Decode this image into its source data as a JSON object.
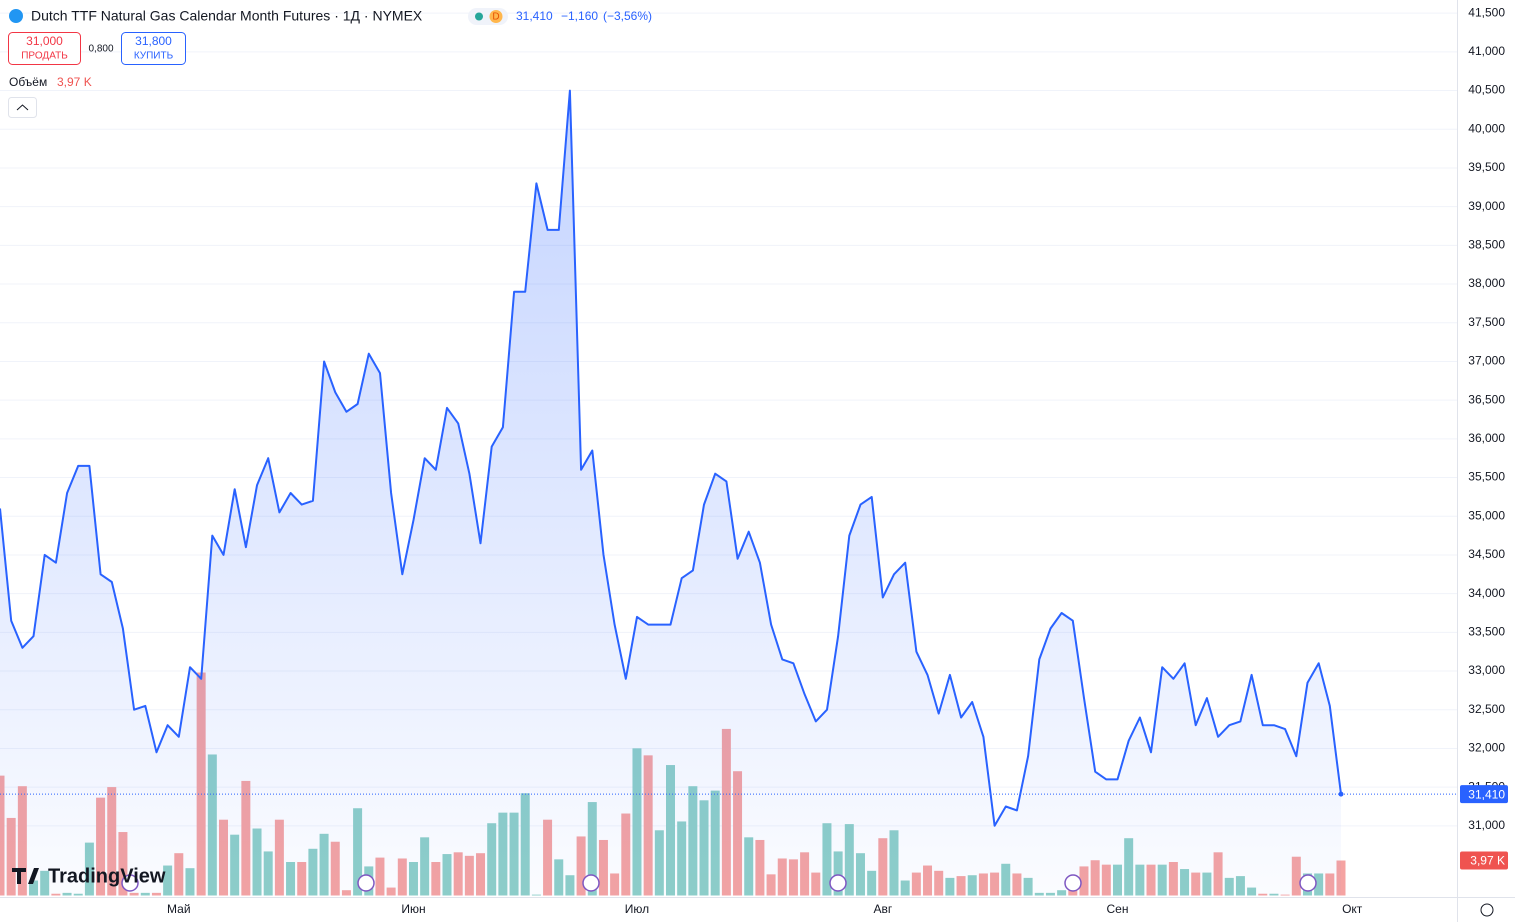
{
  "header": {
    "symbol_title": "Dutch TTF Natural Gas Calendar Month Futures · 1Д · NYMEX",
    "interval_badge": "D",
    "change": "−1,160",
    "change_pct": "(−3,56%)",
    "sell_price": "31,000",
    "sell_label": "ПРОДАТЬ",
    "spread": "0,800",
    "buy_price": "31,800",
    "buy_label": "КУПИТЬ",
    "volume_label": "Объём"
  },
  "logo": "TradingView",
  "chart_data": {
    "type": "line",
    "categories": [
      null,
      null,
      null,
      null,
      null,
      null,
      null,
      null,
      null,
      null,
      null,
      null,
      null,
      null,
      null,
      null,
      "Май",
      null,
      null,
      null,
      null,
      null,
      null,
      null,
      null,
      null,
      null,
      null,
      null,
      null,
      null,
      null,
      null,
      null,
      null,
      null,
      null,
      "Июн",
      null,
      null,
      null,
      null,
      null,
      null,
      null,
      null,
      null,
      null,
      null,
      null,
      null,
      null,
      null,
      null,
      null,
      null,
      null,
      "Июл",
      null,
      null,
      null,
      null,
      null,
      null,
      null,
      null,
      null,
      null,
      null,
      null,
      null,
      null,
      null,
      null,
      null,
      null,
      null,
      null,
      null,
      "Авг",
      null,
      null,
      null,
      null,
      null,
      null,
      null,
      null,
      null,
      null,
      null,
      null,
      null,
      null,
      null,
      null,
      null,
      null,
      null,
      null,
      "Сен",
      null,
      null,
      null,
      null,
      null,
      null,
      null,
      null,
      null,
      null,
      null,
      null,
      null,
      null,
      null,
      null,
      null,
      null,
      null,
      null,
      "Окт"
    ],
    "values": [
      35100,
      33650,
      33300,
      33450,
      34500,
      34400,
      35300,
      35650,
      35650,
      34250,
      34150,
      33550,
      32500,
      32550,
      31950,
      32300,
      32150,
      33050,
      32900,
      34750,
      34500,
      35350,
      34600,
      35400,
      35750,
      35050,
      35300,
      35150,
      35200,
      37000,
      36600,
      36350,
      36450,
      37100,
      36850,
      35300,
      34250,
      34950,
      35750,
      35600,
      36400,
      36200,
      35550,
      34650,
      35900,
      36150,
      37900,
      37900,
      39300,
      38700,
      38700,
      40500,
      35600,
      35850,
      34500,
      33600,
      32900,
      33700,
      33600,
      33600,
      33600,
      34200,
      34300,
      35150,
      35550,
      35450,
      34450,
      34800,
      34400,
      33600,
      33150,
      33100,
      32700,
      32350,
      32500,
      33450,
      34750,
      35150,
      35250,
      33950,
      34250,
      34400,
      33250,
      32950,
      32450,
      32950,
      32400,
      32600,
      32150,
      31000,
      31250,
      31200,
      31900,
      33150,
      33550,
      33750,
      33650,
      32650,
      31700,
      31600,
      31600,
      32100,
      32400,
      31950,
      33050,
      32900,
      33100,
      32300,
      32650,
      32150,
      32300,
      32350,
      32950,
      32300,
      32300,
      32250,
      31900,
      32850,
      33100,
      32550,
      31410,
      null
    ],
    "color": "#2962ff",
    "last_value_label": "31,410",
    "volume": {
      "values": [
        13.6,
        8.8,
        12.4,
        1.7,
        2.8,
        0.2,
        0.3,
        0.2,
        6.0,
        11.1,
        12.3,
        7.2,
        0.3,
        0.3,
        0.3,
        3.4,
        4.8,
        3.1,
        25.3,
        16.0,
        8.6,
        6.9,
        13.0,
        7.6,
        5.0,
        8.6,
        3.8,
        3.8,
        5.3,
        7.0,
        6.1,
        0.6,
        9.9,
        3.3,
        4.3,
        0.9,
        4.2,
        3.8,
        6.6,
        3.8,
        4.7,
        4.9,
        4.5,
        4.8,
        8.2,
        9.4,
        9.4,
        11.6,
        0.1,
        8.6,
        4.1,
        2.3,
        6.7,
        10.6,
        6.3,
        2.5,
        9.3,
        16.7,
        15.9,
        7.4,
        14.8,
        8.4,
        12.4,
        10.8,
        11.9,
        18.9,
        14.1,
        6.6,
        6.3,
        2.4,
        4.2,
        4.1,
        4.9,
        2.6,
        8.2,
        5.0,
        8.1,
        4.8,
        2.8,
        6.5,
        7.4,
        1.7,
        2.6,
        3.4,
        2.8,
        2.0,
        2.2,
        2.3,
        2.5,
        2.6,
        3.6,
        2.5,
        2.0,
        0.3,
        0.3,
        0.6,
        1.7,
        3.3,
        4.0,
        3.5,
        3.5,
        6.5,
        3.5,
        3.5,
        3.5,
        3.8,
        3.0,
        2.6,
        2.6,
        4.9,
        2.0,
        2.2,
        0.9,
        0.2,
        0.2,
        0.1,
        4.4,
        2.5,
        2.5,
        2.5,
        3.97,
        null
      ],
      "last_value_label": "3,97 K",
      "up_color": "#8ecfc8",
      "down_color": "#f5a3a2",
      "tag_color": "#ef5350"
    },
    "ylim": [
      30100,
      41670
    ],
    "yticks": [
      {
        "value": 31000,
        "label": "31,000"
      },
      {
        "value": 31500,
        "label": "31,500"
      },
      {
        "value": 32000,
        "label": "32,000"
      },
      {
        "value": 32500,
        "label": "32,500"
      },
      {
        "value": 33000,
        "label": "33,000"
      },
      {
        "value": 33500,
        "label": "33,500"
      },
      {
        "value": 34000,
        "label": "34,000"
      },
      {
        "value": 34500,
        "label": "34,500"
      },
      {
        "value": 35000,
        "label": "35,000"
      },
      {
        "value": 35500,
        "label": "35,500"
      },
      {
        "value": 36000,
        "label": "36,000"
      },
      {
        "value": 36500,
        "label": "36,500"
      },
      {
        "value": 37000,
        "label": "37,000"
      },
      {
        "value": 37500,
        "label": "37,500"
      },
      {
        "value": 38000,
        "label": "38,000"
      },
      {
        "value": 38500,
        "label": "38,500"
      },
      {
        "value": 39000,
        "label": "39,000"
      },
      {
        "value": 39500,
        "label": "39,500"
      },
      {
        "value": 40000,
        "label": "40,000"
      },
      {
        "value": 40500,
        "label": "40,500"
      },
      {
        "value": 41000,
        "label": "41,000"
      },
      {
        "value": 41500,
        "label": "41,500"
      }
    ],
    "grid": true
  }
}
